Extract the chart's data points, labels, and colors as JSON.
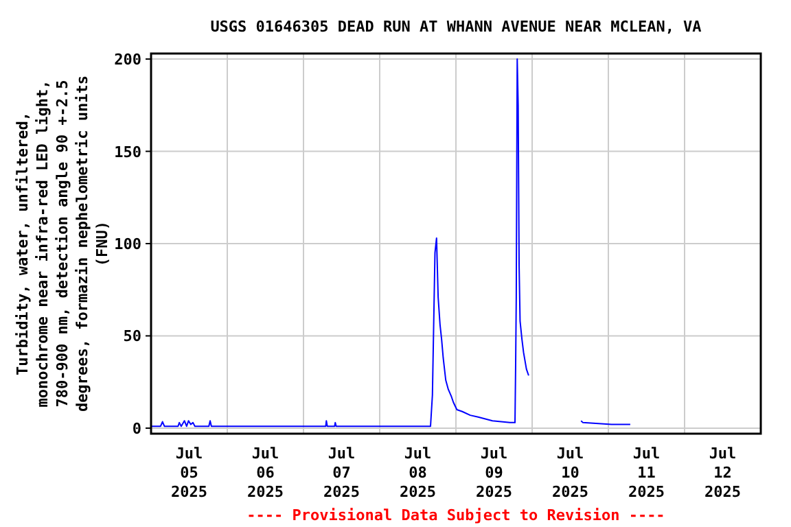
{
  "chart_data": {
    "type": "line",
    "title": "USGS 01646305 DEAD RUN AT WHANN AVENUE NEAR MCLEAN, VA",
    "ylabel": "Turbidity, water, unfiltered,\nmonochrome near infra-red LED light,\n780-900 nm, detection angle 90 +-2.5\ndegrees, formazin nephelometric units\n(FNU)",
    "annotations": [
      "---- Provisional Data Subject to Revision ----"
    ],
    "xlim": [
      "2025-07-05T00:00",
      "2025-07-13T00:00"
    ],
    "xticks": [
      {
        "value": "2025-07-05T12:00",
        "label": "Jul\n05\n2025"
      },
      {
        "value": "2025-07-06T00:00",
        "label": null
      },
      {
        "value": "2025-07-06T12:00",
        "label": "Jul\n06\n2025"
      },
      {
        "value": "2025-07-07T00:00",
        "label": null
      },
      {
        "value": "2025-07-07T12:00",
        "label": "Jul\n07\n2025"
      },
      {
        "value": "2025-07-08T00:00",
        "label": null
      },
      {
        "value": "2025-07-08T12:00",
        "label": "Jul\n08\n2025"
      },
      {
        "value": "2025-07-09T00:00",
        "label": null
      },
      {
        "value": "2025-07-09T12:00",
        "label": "Jul\n09\n2025"
      },
      {
        "value": "2025-07-10T00:00",
        "label": null
      },
      {
        "value": "2025-07-10T12:00",
        "label": "Jul\n10\n2025"
      },
      {
        "value": "2025-07-11T00:00",
        "label": null
      },
      {
        "value": "2025-07-11T12:00",
        "label": "Jul\n11\n2025"
      },
      {
        "value": "2025-07-12T00:00",
        "label": null
      },
      {
        "value": "2025-07-12T12:00",
        "label": "Jul\n12\n2025"
      }
    ],
    "ylim": [
      -3,
      203
    ],
    "yticks": [
      0,
      50,
      100,
      150,
      200
    ],
    "grid": true,
    "line_style": "solid",
    "series": [
      {
        "color": "#0000ff",
        "x": [
          "2025-07-05T00:00",
          "2025-07-05T03:00",
          "2025-07-05T03:36",
          "2025-07-05T04:12",
          "2025-07-05T08:30",
          "2025-07-05T08:54",
          "2025-07-05T09:30",
          "2025-07-05T10:30",
          "2025-07-05T11:12",
          "2025-07-05T11:48",
          "2025-07-05T12:30",
          "2025-07-05T13:12",
          "2025-07-05T13:48",
          "2025-07-05T18:12",
          "2025-07-05T18:36",
          "2025-07-05T19:00",
          "2025-07-07T07:00",
          "2025-07-07T07:12",
          "2025-07-07T07:30",
          "2025-07-07T09:48",
          "2025-07-07T10:00",
          "2025-07-07T10:18",
          "2025-07-08T16:00",
          "2025-07-08T16:36",
          "2025-07-08T17:24",
          "2025-07-08T17:54",
          "2025-07-08T18:24",
          "2025-07-08T19:00",
          "2025-07-08T19:30",
          "2025-07-08T20:00",
          "2025-07-08T20:48",
          "2025-07-08T21:36",
          "2025-07-08T22:36",
          "2025-07-08T23:12",
          "2025-07-09T00:18",
          "2025-07-09T02:00",
          "2025-07-09T04:30",
          "2025-07-09T07:00",
          "2025-07-09T11:30",
          "2025-07-09T17:00",
          "2025-07-09T18:36",
          "2025-07-09T18:48",
          "2025-07-09T19:00",
          "2025-07-09T19:18",
          "2025-07-09T19:36",
          "2025-07-09T19:54",
          "2025-07-09T20:12",
          "2025-07-09T20:48",
          "2025-07-09T21:18",
          "2025-07-09T22:12",
          "2025-07-09T22:54",
          "2025-07-10T06:00",
          "2025-07-10T15:24",
          "2025-07-10T16:00",
          "2025-07-11T01:00",
          "2025-07-11T06:54"
        ],
        "values": [
          1,
          1,
          3.5,
          1,
          1,
          3,
          1,
          4,
          1,
          4,
          2,
          3,
          1,
          1,
          4,
          1,
          1,
          4,
          1,
          1,
          3,
          1,
          1,
          18,
          95,
          103,
          71,
          56,
          48,
          38,
          26,
          21,
          17,
          14,
          10,
          9,
          7,
          6,
          4,
          3,
          3,
          33,
          71,
          200,
          175,
          88,
          58,
          48,
          41,
          32,
          28.5,
          null,
          4,
          3,
          2,
          2
        ]
      }
    ]
  }
}
